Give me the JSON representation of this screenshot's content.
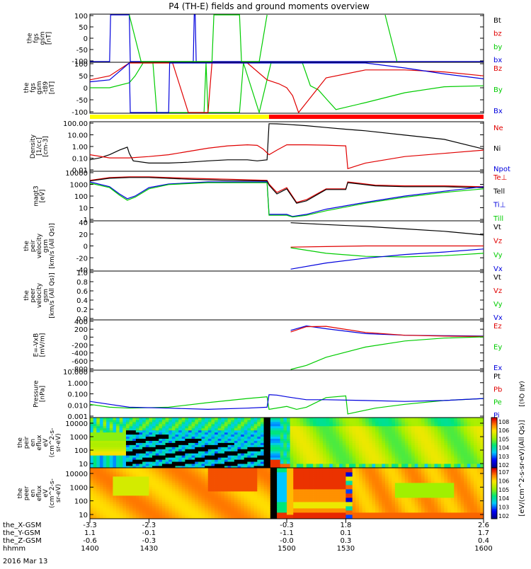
{
  "title": "P4 (TH-E) fields and ground moments overview",
  "date": "2016 Mar 13",
  "colors": {
    "black": "#000000",
    "red": "#e00000",
    "green": "#00cc00",
    "blue": "#0000dd",
    "yellow": "#ffff00",
    "bar_red": "#ff0000"
  },
  "chart_data": [
    {
      "id": "fgs",
      "type": "line",
      "ylabel": [
        "the",
        "fgs",
        "gsm",
        "[nT]"
      ],
      "yticks": [
        "100",
        "50",
        "0",
        "-50",
        "-100"
      ],
      "ylim": [
        -100,
        100
      ],
      "legend": [
        {
          "label": "Bt",
          "color": "black"
        },
        {
          "label": "bz",
          "color": "red"
        },
        {
          "label": "by",
          "color": "green"
        },
        {
          "label": "bx",
          "color": "blue"
        }
      ],
      "series": [
        {
          "name": "bx",
          "color": "blue",
          "x": [
            1400,
            1410,
            1410.5,
            1420,
            1420.5,
            1452.5,
            1453,
            1453.5,
            1454,
            1600
          ],
          "y": [
            -100,
            -100,
            100,
            100,
            -100,
            -100,
            100,
            100,
            -100,
            -100
          ]
        },
        {
          "name": "by",
          "color": "green",
          "x": [
            1420,
            1426,
            1462,
            1463,
            1476,
            1477,
            1486,
            1490
          ],
          "y": [
            100,
            -100,
            -100,
            100,
            100,
            -100,
            -100,
            100
          ]
        },
        {
          "name": "by",
          "color": "green",
          "x": [
            1550,
            1556
          ],
          "y": [
            100,
            -100
          ]
        }
      ]
    },
    {
      "id": "fgs-gsm",
      "type": "line",
      "ylabel": [
        "the",
        "fgs",
        "gsm",
        "-t89",
        "[nT]"
      ],
      "yticks": [
        "100",
        "50",
        "0",
        "-50",
        "-100"
      ],
      "ylim": [
        -125,
        125
      ],
      "legend": [
        {
          "label": "Bz",
          "color": "red"
        },
        {
          "label": "By",
          "color": "green"
        },
        {
          "label": "Bx",
          "color": "blue"
        }
      ],
      "series": [
        {
          "name": "By",
          "color": "green",
          "x": [
            1400,
            1410,
            1420,
            1423,
            1427,
            1432,
            1434,
            1458,
            1459,
            1460,
            1476,
            1478,
            1486,
            1492,
            1500,
            1508,
            1512,
            1516,
            1520,
            1525,
            1540,
            1560,
            1580,
            1600
          ],
          "y": [
            0,
            0,
            25,
            60,
            125,
            125,
            -125,
            -125,
            125,
            -125,
            -125,
            125,
            -125,
            125,
            125,
            125,
            10,
            -10,
            -55,
            -110,
            -75,
            -25,
            5,
            10
          ]
        },
        {
          "name": "Bz",
          "color": "red",
          "x": [
            1400,
            1410,
            1420,
            1442,
            1450,
            1460,
            1462,
            1480,
            1490,
            1496,
            1500,
            1503,
            1506,
            1520,
            1540,
            1560,
            1580,
            1600
          ],
          "y": [
            40,
            60,
            125,
            125,
            -125,
            -125,
            125,
            125,
            40,
            20,
            0,
            -40,
            -125,
            50,
            90,
            90,
            80,
            60
          ]
        },
        {
          "name": "Bx",
          "color": "blue",
          "x": [
            1400,
            1410,
            1420,
            1420.5,
            1440,
            1440.5,
            1500,
            1520,
            1540,
            1560,
            1580,
            1600
          ],
          "y": [
            30,
            40,
            125,
            -125,
            -125,
            125,
            125,
            125,
            125,
            100,
            70,
            45
          ]
        }
      ]
    },
    {
      "id": "density",
      "type": "line",
      "log": true,
      "ylabel": [
        "Density",
        "[1/cc]",
        "[cm-3]"
      ],
      "yticks": [
        "100.00",
        "10.00",
        "1.00",
        "0.10",
        "0.01"
      ],
      "ylim": [
        0.01,
        300
      ],
      "legend": [
        {
          "label": "Ne",
          "color": "red"
        },
        {
          "label": "Ni",
          "color": "black"
        },
        {
          "label": "Npot",
          "color": "blue"
        }
      ],
      "series": [
        {
          "name": "Ni",
          "color": "black",
          "x": [
            1400,
            1405,
            1410,
            1415,
            1419,
            1420,
            1422,
            1430,
            1440,
            1450,
            1460,
            1470,
            1480,
            1485,
            1490,
            1491,
            1495,
            1500,
            1510,
            1520,
            1530,
            1540,
            1560,
            1580,
            1600
          ],
          "y": [
            0.1,
            0.15,
            0.3,
            0.8,
            1.5,
            0.4,
            0.08,
            0.05,
            0.05,
            0.06,
            0.08,
            0.1,
            0.1,
            0.08,
            0.1,
            230,
            220,
            200,
            150,
            100,
            70,
            50,
            20,
            8,
            1
          ]
        },
        {
          "name": "Ne",
          "color": "red",
          "x": [
            1400,
            1410,
            1420,
            1430,
            1440,
            1450,
            1460,
            1470,
            1480,
            1485,
            1488,
            1491,
            1495,
            1500,
            1510,
            1520,
            1530,
            1531,
            1540,
            1560,
            1580,
            1600
          ],
          "y": [
            0.3,
            0.15,
            0.15,
            0.2,
            0.3,
            0.6,
            1.2,
            2.0,
            2.5,
            2.2,
            1.0,
            0.3,
            0.8,
            2.5,
            2.5,
            2.3,
            2.0,
            0.015,
            0.05,
            0.2,
            0.4,
            0.8
          ]
        }
      ]
    },
    {
      "id": "temperature",
      "type": "line",
      "log": true,
      "ylabel": [
        "magt3",
        "[eV]"
      ],
      "yticks": [
        "10000",
        "1000",
        "100",
        "10",
        "1"
      ],
      "ylim": [
        1,
        10000
      ],
      "legend": [
        {
          "label": "Te⊥",
          "color": "red"
        },
        {
          "label": "Tell",
          "color": "black"
        },
        {
          "label": "Ti⊥",
          "color": "blue"
        },
        {
          "label": "Till",
          "color": "green"
        }
      ],
      "series": [
        {
          "name": "Te⊥",
          "color": "red",
          "x": [
            1400,
            1410,
            1420,
            1430,
            1450,
            1470,
            1490,
            1491,
            1495,
            1500,
            1505,
            1510,
            1520,
            1530,
            1531,
            1545,
            1560,
            1580,
            1600
          ],
          "y": [
            2000,
            3500,
            4000,
            4000,
            3000,
            2500,
            2000,
            1000,
            200,
            500,
            30,
            50,
            400,
            400,
            1500,
            800,
            700,
            700,
            600
          ]
        },
        {
          "name": "Tell",
          "color": "black",
          "x": [
            1400,
            1410,
            1420,
            1430,
            1450,
            1470,
            1490,
            1491,
            1495,
            1500,
            1505,
            1510,
            1520,
            1530,
            1531,
            1545,
            1560,
            1580,
            1600
          ],
          "y": [
            1800,
            3000,
            3500,
            3500,
            2500,
            2000,
            1800,
            800,
            150,
            400,
            25,
            40,
            350,
            350,
            1300,
            700,
            600,
            600,
            500
          ]
        },
        {
          "name": "Ti⊥",
          "color": "blue",
          "x": [
            1400,
            1410,
            1415,
            1419,
            1423,
            1430,
            1440,
            1460,
            1480,
            1490,
            1491,
            1500,
            1503,
            1510,
            1520,
            1540,
            1560,
            1580,
            1600
          ],
          "y": [
            1500,
            600,
            150,
            60,
            100,
            500,
            1000,
            1500,
            1500,
            1500,
            3,
            3,
            2,
            3,
            8,
            30,
            100,
            250,
            600
          ]
        },
        {
          "name": "Till",
          "color": "green",
          "x": [
            1400,
            1410,
            1415,
            1419,
            1423,
            1430,
            1440,
            1460,
            1480,
            1490,
            1491,
            1500,
            1503,
            1510,
            1520,
            1540,
            1560,
            1580,
            1600
          ],
          "y": [
            1200,
            500,
            120,
            45,
            80,
            400,
            900,
            1300,
            1300,
            1300,
            2.5,
            2.5,
            1.8,
            2.5,
            6,
            25,
            80,
            200,
            400
          ]
        }
      ]
    },
    {
      "id": "peir-velocity",
      "type": "line",
      "ylabel": [
        "the",
        "peir",
        "velocity",
        "gsm",
        "[km/s (All Qs)]"
      ],
      "yticks": [
        "40",
        "20",
        "0",
        "-20",
        "-40"
      ],
      "ylim": [
        -40,
        40
      ],
      "legend": [
        {
          "label": "Vt",
          "color": "black"
        },
        {
          "label": "Vz",
          "color": "red"
        },
        {
          "label": "Vy",
          "color": "green"
        },
        {
          "label": "Vx",
          "color": "blue"
        }
      ],
      "series": [
        {
          "name": "Vt",
          "color": "black",
          "x": [
            1502,
            1520,
            1540,
            1560,
            1580,
            1600
          ],
          "y": [
            38,
            35,
            32,
            28,
            24,
            18
          ]
        },
        {
          "name": "Vz",
          "color": "red",
          "x": [
            1502,
            1520,
            1540,
            1560,
            1580,
            1600
          ],
          "y": [
            -2,
            -1,
            0,
            0,
            0,
            0
          ]
        },
        {
          "name": "Vy",
          "color": "green",
          "x": [
            1502,
            1520,
            1540,
            1560,
            1580,
            1600
          ],
          "y": [
            -3,
            -12,
            -17,
            -18,
            -16,
            -12
          ]
        },
        {
          "name": "Vx",
          "color": "blue",
          "x": [
            1502,
            1520,
            1540,
            1560,
            1580,
            1600
          ],
          "y": [
            -38,
            -28,
            -20,
            -14,
            -10,
            -5
          ]
        }
      ]
    },
    {
      "id": "peer-velocity",
      "type": "line",
      "ylabel": [
        "the",
        "peer",
        "velocity",
        "gsm",
        "[km/s (All Qs)]"
      ],
      "yticks": [
        "1.0",
        "0.8",
        "0.6",
        "0.4",
        "0.2",
        "0.0"
      ],
      "ylim": [
        0,
        1
      ],
      "legend": [
        {
          "label": "Vt",
          "color": "black"
        },
        {
          "label": "Vz",
          "color": "red"
        },
        {
          "label": "Vy",
          "color": "green"
        },
        {
          "label": "Vx",
          "color": "blue"
        }
      ],
      "series": []
    },
    {
      "id": "efield",
      "type": "line",
      "ylabel": [
        "E=-VxB",
        "[mV/m]"
      ],
      "yticks": [
        "400",
        "200",
        "0",
        "-200",
        "-400",
        "-600",
        "-800"
      ],
      "ylim": [
        -800,
        400
      ],
      "legend": [
        {
          "label": "Ez",
          "color": "red"
        },
        {
          "label": "Ey",
          "color": "green"
        },
        {
          "label": "Ex",
          "color": "blue"
        }
      ],
      "series": [
        {
          "name": "Ex",
          "color": "blue",
          "x": [
            1502,
            1510,
            1520,
            1540,
            1560,
            1580,
            1600
          ],
          "y": [
            160,
            270,
            200,
            80,
            40,
            30,
            20
          ]
        },
        {
          "name": "Ez",
          "color": "red",
          "x": [
            1502,
            1510,
            1520,
            1540,
            1560,
            1580,
            1600
          ],
          "y": [
            120,
            250,
            260,
            110,
            40,
            20,
            10
          ]
        },
        {
          "name": "Ey",
          "color": "green",
          "x": [
            1502,
            1510,
            1520,
            1540,
            1560,
            1580,
            1600
          ],
          "y": [
            -800,
            -700,
            -500,
            -250,
            -100,
            -30,
            0
          ]
        }
      ]
    },
    {
      "id": "pressure",
      "type": "line",
      "log": true,
      "ylabel": [
        "Pressure",
        "[nPa]"
      ],
      "yticks": [
        "10.000",
        "1.000",
        "0.100",
        "0.010",
        "0.001"
      ],
      "ylim": [
        0.001,
        60
      ],
      "legend": [
        {
          "label": "Pt",
          "color": "black"
        },
        {
          "label": "Pb",
          "color": "red"
        },
        {
          "label": "Pe",
          "color": "green"
        },
        {
          "label": "Pi",
          "color": "blue"
        }
      ],
      "legend_unit": "(All Qs)]",
      "series": [
        {
          "name": "Pe",
          "color": "green",
          "x": [
            1400,
            1410,
            1420,
            1440,
            1460,
            1480,
            1490,
            1491,
            1500,
            1505,
            1510,
            1520,
            1530,
            1531,
            1545,
            1560,
            1580,
            1600
          ],
          "y": [
            0.02,
            0.01,
            0.008,
            0.01,
            0.03,
            0.08,
            0.12,
            0.006,
            0.012,
            0.006,
            0.01,
            0.1,
            0.15,
            0.002,
            0.008,
            0.02,
            0.05,
            0.08
          ]
        },
        {
          "name": "Pi",
          "color": "blue",
          "x": [
            1400,
            1410,
            1420,
            1440,
            1460,
            1480,
            1490,
            1491,
            1495,
            1500,
            1510,
            1520,
            1540,
            1560,
            1580,
            1600
          ],
          "y": [
            0.04,
            0.02,
            0.01,
            0.008,
            0.006,
            0.008,
            0.01,
            0.2,
            0.18,
            0.12,
            0.06,
            0.06,
            0.05,
            0.04,
            0.05,
            0.08
          ]
        }
      ]
    },
    {
      "id": "peir-eflux",
      "type": "heatmap",
      "ylabel": [
        "the",
        "peir",
        "en",
        "eflux",
        "eV",
        "(cm^2-s-",
        "sr-eV)"
      ],
      "yticks": [
        "10000",
        "1000",
        "100",
        "10"
      ],
      "colorbar_ticks": [
        "10^8",
        "10^6",
        "10^5",
        "10^4",
        "10^3",
        "10^2"
      ]
    },
    {
      "id": "peer-eflux",
      "type": "heatmap",
      "ylabel": [
        "the",
        "peer",
        "en",
        "eflux",
        "eV",
        "(cm^2-s-",
        "sr-eV)"
      ],
      "yticks": [
        "10000",
        "1000",
        "100",
        "10"
      ],
      "colorbar_ticks": [
        "10^7",
        "10^6",
        "10^5",
        "10^4",
        "10^3",
        "10^2"
      ]
    }
  ],
  "colorbar_label": "[eV/(cm^2-s-sr-eV)(All Qs)]",
  "xaxis": {
    "row_labels": [
      "the_X-GSM",
      "the_Y-GSM",
      "the_Z-GSM",
      "hhmm"
    ],
    "ticks": [
      {
        "t": 1400,
        "vals": [
          "-3.3",
          "1.1",
          "-0.6",
          "1400"
        ]
      },
      {
        "t": 1430,
        "vals": [
          "-2.3",
          "-0.1",
          "-0.3",
          "1430"
        ]
      },
      {
        "t": 1500,
        "vals": [
          "-0.3",
          "-1.1",
          "-0.0",
          "1500"
        ]
      },
      {
        "t": 1530,
        "vals": [
          "1.8",
          "0.1",
          "0.3",
          "1530"
        ]
      },
      {
        "t": 1600,
        "vals": [
          "2.6",
          "1.7",
          "0.4",
          "1600"
        ]
      }
    ],
    "xlim": [
      1400,
      1600
    ]
  }
}
